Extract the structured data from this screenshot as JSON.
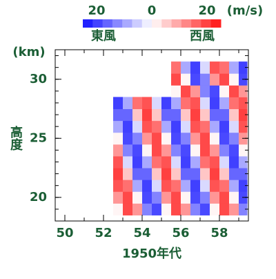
{
  "chart_data": {
    "type": "heatmap",
    "x_label": "1950年代",
    "y_label": "高度",
    "y_unit": "(km)",
    "x": [
      52.75,
      53.25,
      53.75,
      54.25,
      54.75,
      55.25,
      55.75,
      56.25,
      56.75,
      57.25,
      57.75,
      58.25,
      58.75,
      59.25
    ],
    "y": [
      19,
      20,
      21,
      22,
      23,
      24,
      25,
      26,
      27,
      28,
      29,
      30,
      31
    ],
    "values": [
      [
        1,
        19,
        11,
        -13,
        -19,
        1,
        19,
        11,
        -13,
        -19,
        1,
        19,
        11,
        -13
      ],
      [
        11,
        19,
        1,
        -19,
        -13,
        11,
        19,
        1,
        -19,
        -13,
        11,
        19,
        1,
        -19
      ],
      [
        18,
        15,
        -9,
        -20,
        -4,
        18,
        15,
        -9,
        -20,
        -4,
        18,
        15,
        -9,
        -20
      ],
      [
        20,
        6,
        -16,
        -16,
        6,
        20,
        6,
        -16,
        -16,
        6,
        20,
        6,
        -16,
        -16
      ],
      [
        18,
        -4,
        -20,
        -9,
        15,
        18,
        -4,
        -20,
        -9,
        15,
        18,
        -4,
        -20,
        -9
      ],
      [
        11,
        -13,
        -19,
        1,
        19,
        11,
        -13,
        -19,
        1,
        19,
        11,
        -13,
        -19,
        1
      ],
      [
        1,
        -19,
        -13,
        11,
        19,
        1,
        -19,
        -13,
        11,
        19,
        1,
        -19,
        -13,
        11
      ],
      [
        -9,
        -20,
        -4,
        18,
        15,
        -9,
        -20,
        -4,
        18,
        15,
        -9,
        -20,
        -4,
        18
      ],
      [
        -16,
        -16,
        6,
        20,
        6,
        -16,
        -16,
        6,
        20,
        6,
        -16,
        -16,
        6,
        20
      ],
      [
        -20,
        -9,
        15,
        18,
        -4,
        -20,
        -9,
        15,
        18,
        -4,
        -20,
        -9,
        15,
        18
      ],
      [
        null,
        null,
        null,
        null,
        null,
        null,
        1,
        19,
        11,
        -13,
        -19,
        1,
        19,
        11
      ],
      [
        null,
        null,
        null,
        null,
        null,
        null,
        19,
        1,
        -19,
        -13,
        11,
        19,
        1,
        -19
      ],
      [
        null,
        null,
        null,
        null,
        null,
        null,
        15,
        -9,
        -20,
        -4,
        18,
        15,
        -9,
        -20
      ]
    ],
    "xlim": [
      49.5,
      59.5
    ],
    "ylim": [
      18,
      32.5
    ],
    "xticks": [
      50,
      52,
      54,
      56,
      58
    ],
    "yticks": [
      20,
      25,
      30
    ],
    "x_minor_ticks": [
      50,
      51,
      52,
      53,
      54,
      55,
      56,
      57,
      58,
      59
    ],
    "y_minor_ticks": [
      18,
      19,
      20,
      21,
      22,
      23,
      24,
      25,
      26,
      27,
      28,
      29,
      30,
      31,
      32
    ],
    "colorbar": {
      "clim": [
        -25,
        25
      ],
      "ticks": [
        {
          "value": -20,
          "label": "20"
        },
        0,
        20
      ],
      "unit": "(m/s)",
      "low_label": "東風",
      "high_label": "西風",
      "low_color": "#1010ff",
      "high_color": "#ff1010"
    }
  }
}
